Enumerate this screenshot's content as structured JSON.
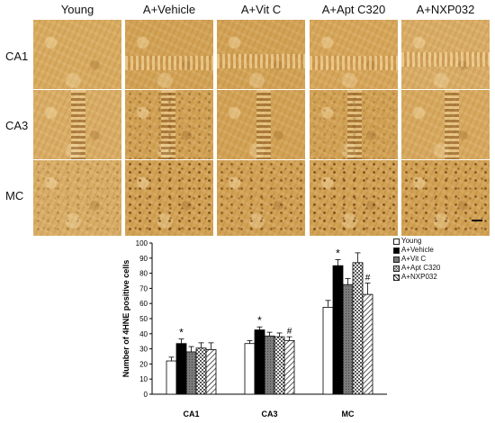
{
  "figure": {
    "columns": [
      "Young",
      "A+Vehicle",
      "A+Vit C",
      "A+Apt C320",
      "A+NXP032"
    ],
    "rows": [
      "CA1",
      "CA3",
      "MC"
    ]
  },
  "chart_data": {
    "type": "bar",
    "categories": [
      "CA1",
      "CA3",
      "MC"
    ],
    "ylabel": "Number of 4HNE positive cells",
    "ylim": [
      0,
      100
    ],
    "yticks": [
      0,
      10,
      20,
      30,
      40,
      50,
      60,
      70,
      80,
      90,
      100
    ],
    "series": [
      {
        "name": "Young",
        "values": [
          22,
          33.5,
          57.5
        ],
        "errors": [
          2.5,
          2,
          4.5
        ],
        "fill": "white"
      },
      {
        "name": "A+Vehicle",
        "values": [
          33.5,
          42.5,
          85
        ],
        "errors": [
          3,
          2,
          4
        ],
        "fill": "black"
      },
      {
        "name": "A+Vit C",
        "values": [
          28,
          38.5,
          72.5
        ],
        "errors": [
          3.5,
          2.5,
          4
        ],
        "fill": "gray"
      },
      {
        "name": "A+Apt C320",
        "values": [
          30.5,
          38,
          87
        ],
        "errors": [
          3.5,
          2.5,
          6.5
        ],
        "fill": "checker"
      },
      {
        "name": "A+NXP032",
        "values": [
          29.5,
          35.5,
          66
        ],
        "errors": [
          4.5,
          2.5,
          7.5
        ],
        "fill": "hatch"
      }
    ],
    "annotations": [
      {
        "category": "CA1",
        "series": "A+Vehicle",
        "text": "*"
      },
      {
        "category": "CA3",
        "series": "A+Vehicle",
        "text": "*"
      },
      {
        "category": "CA3",
        "series": "A+NXP032",
        "text": "#"
      },
      {
        "category": "MC",
        "series": "A+Vehicle",
        "text": "*"
      },
      {
        "category": "MC",
        "series": "A+NXP032",
        "text": "#"
      }
    ],
    "legend_position": "top-right"
  }
}
